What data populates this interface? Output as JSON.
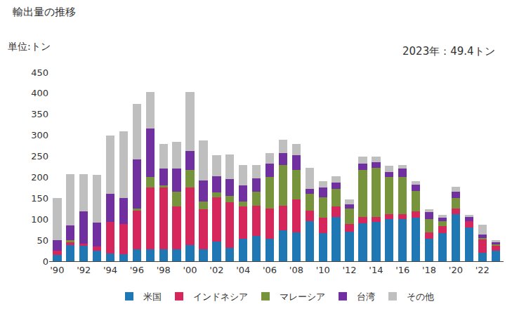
{
  "chart_data": {
    "type": "bar",
    "title": "輸出量の推移",
    "ylabel": "単位:トン",
    "annotations": [
      {
        "text": "2023年：49.4トン"
      }
    ],
    "stacked": true,
    "grid": false,
    "legend": "bottom",
    "categories": [
      "'90",
      null,
      "'92",
      null,
      "'94",
      null,
      "'96",
      null,
      "'98",
      null,
      "'00",
      null,
      "'02",
      null,
      "'04",
      null,
      "'06",
      null,
      "'08",
      null,
      "'10",
      null,
      "'12",
      null,
      "'14",
      null,
      "'16",
      null,
      "'18",
      null,
      "'20",
      null,
      "'22",
      null
    ],
    "ylim": [
      0,
      450
    ],
    "yticks": [
      0,
      50,
      100,
      150,
      200,
      250,
      300,
      350,
      400,
      450
    ],
    "series": [
      {
        "name": "米国",
        "color": "#1f77b4",
        "values": [
          15,
          38,
          37,
          25,
          18,
          17,
          28,
          28,
          28,
          28,
          38,
          28,
          47,
          32,
          53,
          60,
          53,
          73,
          68,
          95,
          67,
          105,
          70,
          90,
          93,
          100,
          100,
          103,
          53,
          67,
          112,
          80,
          20,
          25
        ]
      },
      {
        "name": "インドネシア",
        "color": "#d6275d",
        "values": [
          10,
          7,
          5,
          10,
          75,
          72,
          93,
          147,
          147,
          103,
          137,
          95,
          105,
          108,
          78,
          72,
          72,
          59,
          80,
          25,
          36,
          25,
          18,
          15,
          12,
          12,
          12,
          15,
          15,
          17,
          14,
          15,
          33,
          13
        ]
      },
      {
        "name": "マレーシア",
        "color": "#77933c",
        "values": [
          0,
          5,
          0,
          0,
          0,
          0,
          4,
          25,
          5,
          35,
          42,
          20,
          12,
          15,
          12,
          34,
          75,
          98,
          70,
          40,
          50,
          42,
          37,
          112,
          117,
          88,
          88,
          50,
          32,
          12,
          24,
          0,
          3,
          2
        ]
      },
      {
        "name": "台湾",
        "color": "#7030a0",
        "values": [
          25,
          35,
          77,
          57,
          67,
          61,
          117,
          116,
          40,
          54,
          46,
          50,
          39,
          40,
          37,
          31,
          33,
          27,
          34,
          12,
          22,
          15,
          11,
          15,
          14,
          12,
          20,
          15,
          17,
          8,
          15,
          10,
          8,
          5
        ]
      },
      {
        "name": "その他",
        "color": "#bfbfbf",
        "values": [
          100,
          122,
          89,
          113,
          140,
          160,
          132,
          88,
          60,
          65,
          141,
          94,
          50,
          60,
          50,
          33,
          25,
          33,
          28,
          51,
          15,
          16,
          11,
          17,
          13,
          16,
          9,
          7,
          6,
          7,
          13,
          6,
          23,
          4.4
        ]
      }
    ]
  }
}
